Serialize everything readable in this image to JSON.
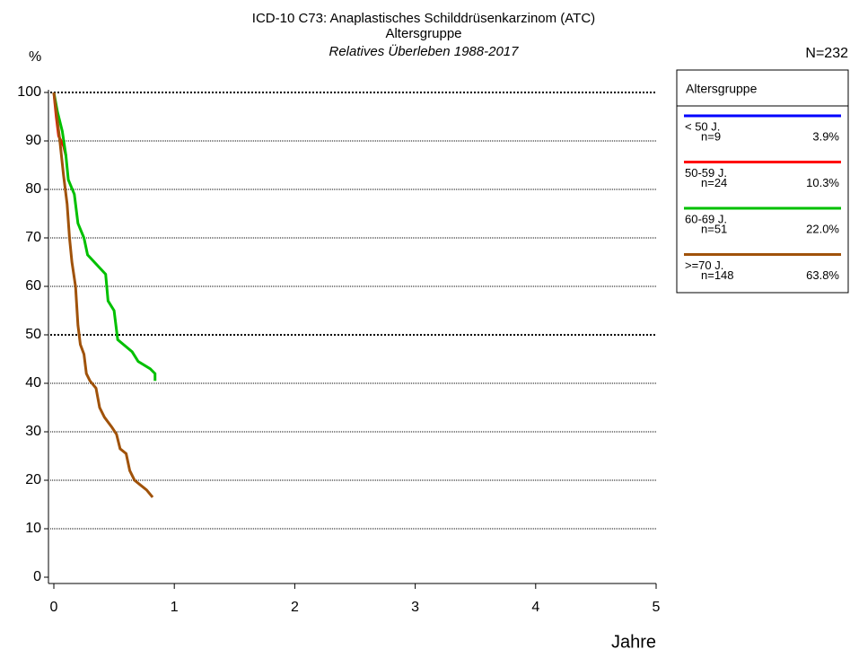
{
  "chart_data": {
    "type": "line",
    "title": "ICD-10 C73: Anaplastisches Schilddrüsenkarzinom (ATC)",
    "subtitle": "Altersgruppe",
    "subtitle2": "Relatives Überleben 1988-2017",
    "y_label": "%",
    "x_label": "Jahre",
    "total": "N=232",
    "legend_title": "Altersgruppe",
    "xlim": [
      0,
      5
    ],
    "xticks": [
      0,
      1,
      2,
      3,
      4,
      5
    ],
    "ylim": [
      0,
      100
    ],
    "yticks": [
      0,
      10,
      20,
      30,
      40,
      50,
      60,
      70,
      80,
      90,
      100
    ],
    "grid": true,
    "bold_grid": [
      50,
      100
    ],
    "series": [
      {
        "name": "< 50 J.",
        "n": "n=9",
        "share": "3.9%",
        "color": "#0000ff",
        "x": [
          0
        ],
        "values": [
          100
        ]
      },
      {
        "name": "50-59 J.",
        "n": "n=24",
        "share": "10.3%",
        "color": "#ff0000",
        "x": [
          0,
          0.02,
          0.04,
          0.06,
          0.08,
          0.1
        ],
        "values": [
          100,
          95,
          91,
          90,
          89,
          87
        ]
      },
      {
        "name": "60-69 J.",
        "n": "n=51",
        "share": "22.0%",
        "color": "#00c000",
        "x": [
          0,
          0.03,
          0.07,
          0.1,
          0.12,
          0.17,
          0.2,
          0.25,
          0.28,
          0.43,
          0.45,
          0.5,
          0.53,
          0.65,
          0.7,
          0.8,
          0.84,
          0.84
        ],
        "values": [
          100,
          96,
          92,
          87,
          82,
          79,
          73,
          70,
          66.5,
          62.5,
          57,
          55,
          49,
          46.5,
          44.5,
          43,
          42,
          40.5
        ]
      },
      {
        "name": ">=70 J.",
        "n": "n=148",
        "share": "63.8%",
        "color": "#a0520a",
        "x": [
          0,
          0.05,
          0.08,
          0.11,
          0.13,
          0.15,
          0.18,
          0.19,
          0.2,
          0.22,
          0.25,
          0.27,
          0.3,
          0.35,
          0.38,
          0.42,
          0.48,
          0.52,
          0.55,
          0.6,
          0.63,
          0.67,
          0.72,
          0.77,
          0.82
        ],
        "values": [
          100,
          90,
          83,
          77,
          70,
          65,
          60,
          56,
          52,
          48,
          46,
          42,
          40.5,
          39,
          35,
          33,
          31,
          29.5,
          26.5,
          25.5,
          22,
          20,
          19,
          18,
          16.5
        ]
      }
    ]
  }
}
